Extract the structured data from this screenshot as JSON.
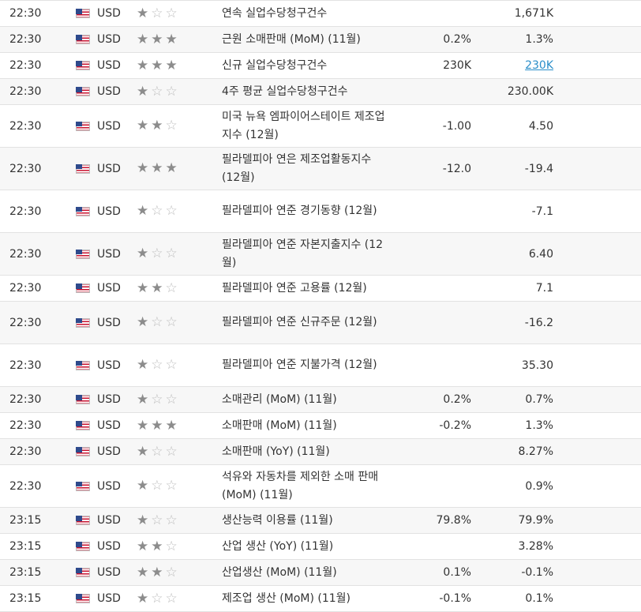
{
  "calendar": {
    "rows": [
      {
        "time": "22:30",
        "currency": "USD",
        "importance": 1,
        "event": "연속 실업수당청구건수",
        "actual": "",
        "previous": "1,671K",
        "tall": false
      },
      {
        "time": "22:30",
        "currency": "USD",
        "importance": 3,
        "event": "근원 소매판매 (MoM) (11월)",
        "actual": "0.2%",
        "previous": "1.3%",
        "tall": false
      },
      {
        "time": "22:30",
        "currency": "USD",
        "importance": 3,
        "event": "신규 실업수당청구건수",
        "actual": "230K",
        "previous": "230K",
        "previous_link": true,
        "tall": false
      },
      {
        "time": "22:30",
        "currency": "USD",
        "importance": 1,
        "event": "4주 평균 실업수당청구건수",
        "actual": "",
        "previous": "230.00K",
        "tall": false
      },
      {
        "time": "22:30",
        "currency": "USD",
        "importance": 2,
        "event": "미국 뉴욕 엠파이어스테이트 제조업지수 (12월)",
        "actual": "-1.00",
        "previous": "4.50",
        "tall": true
      },
      {
        "time": "22:30",
        "currency": "USD",
        "importance": 3,
        "event": "필라델피아 연은 제조업활동지수 (12월)",
        "actual": "-12.0",
        "previous": "-19.4",
        "tall": true
      },
      {
        "time": "22:30",
        "currency": "USD",
        "importance": 1,
        "event": "필라델피아 연준 경기동향 (12월)",
        "actual": "",
        "previous": "-7.1",
        "tall": true
      },
      {
        "time": "22:30",
        "currency": "USD",
        "importance": 1,
        "event": "필라델피아 연준 자본지출지수 (12월)",
        "actual": "",
        "previous": "6.40",
        "tall": true
      },
      {
        "time": "22:30",
        "currency": "USD",
        "importance": 2,
        "event": "필라델피아 연준 고용률 (12월)",
        "actual": "",
        "previous": "7.1",
        "tall": false
      },
      {
        "time": "22:30",
        "currency": "USD",
        "importance": 1,
        "event": "필라델피아 연준 신규주문 (12월)",
        "actual": "",
        "previous": "-16.2",
        "tall": true
      },
      {
        "time": "22:30",
        "currency": "USD",
        "importance": 1,
        "event": "필라델피아 연준 지불가격 (12월)",
        "actual": "",
        "previous": "35.30",
        "tall": true
      },
      {
        "time": "22:30",
        "currency": "USD",
        "importance": 1,
        "event": "소매관리 (MoM) (11월)",
        "actual": "0.2%",
        "previous": "0.7%",
        "tall": false
      },
      {
        "time": "22:30",
        "currency": "USD",
        "importance": 3,
        "event": "소매판매 (MoM) (11월)",
        "actual": "-0.2%",
        "previous": "1.3%",
        "tall": false
      },
      {
        "time": "22:30",
        "currency": "USD",
        "importance": 1,
        "event": "소매판매 (YoY) (11월)",
        "actual": "",
        "previous": "8.27%",
        "tall": false
      },
      {
        "time": "22:30",
        "currency": "USD",
        "importance": 1,
        "event": "석유와 자동차를 제외한 소매 판매 (MoM) (11월)",
        "actual": "",
        "previous": "0.9%",
        "tall": true
      },
      {
        "time": "23:15",
        "currency": "USD",
        "importance": 1,
        "event": "생산능력 이용률 (11월)",
        "actual": "79.8%",
        "previous": "79.9%",
        "tall": false
      },
      {
        "time": "23:15",
        "currency": "USD",
        "importance": 2,
        "event": "산업 생산 (YoY) (11월)",
        "actual": "",
        "previous": "3.28%",
        "tall": false
      },
      {
        "time": "23:15",
        "currency": "USD",
        "importance": 2,
        "event": "산업생산 (MoM) (11월)",
        "actual": "0.1%",
        "previous": "-0.1%",
        "tall": false
      },
      {
        "time": "23:15",
        "currency": "USD",
        "importance": 1,
        "event": "제조업 생산 (MoM) (11월)",
        "actual": "-0.1%",
        "previous": "0.1%",
        "tall": false
      }
    ]
  },
  "glyphs": {
    "star_full": "★",
    "star_empty": "☆"
  },
  "colors": {
    "flag_red": "#c8102e",
    "flag_blue": "#2e4a8c",
    "link": "#2a8ec9",
    "star_full": "#8c8c8c",
    "star_empty": "#bdbdbd"
  }
}
